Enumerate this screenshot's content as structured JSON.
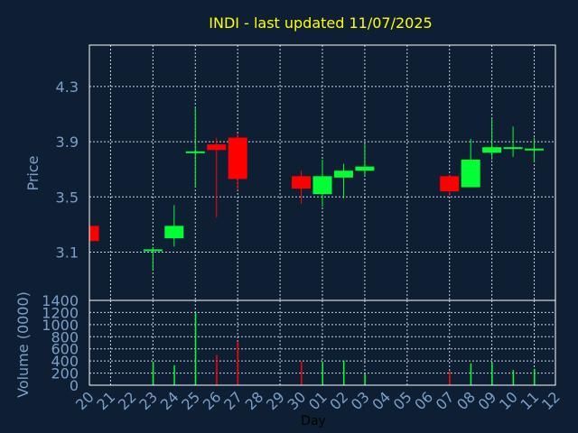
{
  "chart_data": [
    {
      "type": "candlestick",
      "title": "INDI - last updated 11/07/2025",
      "ylabel": "Price",
      "ylim": [
        2.75,
        4.6
      ],
      "yticks": [
        "3.1",
        "3.5",
        "3.9",
        "4.3"
      ],
      "grid": true,
      "x": [
        "20",
        "21",
        "22",
        "23",
        "24",
        "25",
        "26",
        "27",
        "28",
        "29",
        "30",
        "01",
        "02",
        "03",
        "04",
        "05",
        "06",
        "07",
        "08",
        "09",
        "10",
        "11",
        "12"
      ],
      "candles": [
        {
          "day": "20",
          "open": 3.29,
          "high": 3.29,
          "low": 3.18,
          "close": 3.18
        },
        {
          "day": "23",
          "open": 3.11,
          "high": 3.13,
          "low": 2.97,
          "close": 3.12
        },
        {
          "day": "24",
          "open": 3.2,
          "high": 3.44,
          "low": 3.14,
          "close": 3.29
        },
        {
          "day": "25",
          "open": 3.82,
          "high": 4.15,
          "low": 3.57,
          "close": 3.83
        },
        {
          "day": "26",
          "open": 3.88,
          "high": 3.93,
          "low": 3.35,
          "close": 3.84
        },
        {
          "day": "27",
          "open": 3.93,
          "high": 3.96,
          "low": 3.55,
          "close": 3.63
        },
        {
          "day": "30",
          "open": 3.65,
          "high": 3.69,
          "low": 3.45,
          "close": 3.56
        },
        {
          "day": "01",
          "open": 3.52,
          "high": 3.77,
          "low": 3.43,
          "close": 3.65
        },
        {
          "day": "02",
          "open": 3.64,
          "high": 3.74,
          "low": 3.49,
          "close": 3.69
        },
        {
          "day": "03",
          "open": 3.69,
          "high": 3.88,
          "low": 3.65,
          "close": 3.72
        },
        {
          "day": "07",
          "open": 3.65,
          "high": 3.66,
          "low": 3.51,
          "close": 3.54
        },
        {
          "day": "08",
          "open": 3.57,
          "high": 3.92,
          "low": 3.57,
          "close": 3.77
        },
        {
          "day": "09",
          "open": 3.82,
          "high": 4.07,
          "low": 3.77,
          "close": 3.86
        },
        {
          "day": "10",
          "open": 3.85,
          "high": 4.01,
          "low": 3.79,
          "close": 3.86
        },
        {
          "day": "11",
          "open": 3.84,
          "high": 3.93,
          "low": 3.75,
          "close": 3.85
        }
      ],
      "colors": {
        "up": "#00ff33",
        "down": "#ff0000"
      }
    },
    {
      "type": "bar",
      "ylabel": "Volume (0000)",
      "xlabel": "Day",
      "ylim": [
        0,
        1400
      ],
      "yticks": [
        "0",
        "200",
        "400",
        "600",
        "800",
        "1000",
        "1200",
        "1400"
      ],
      "categories": [
        "20",
        "21",
        "22",
        "23",
        "24",
        "25",
        "26",
        "27",
        "28",
        "29",
        "30",
        "01",
        "02",
        "03",
        "04",
        "05",
        "06",
        "07",
        "08",
        "09",
        "10",
        "11",
        "12"
      ],
      "bars": [
        {
          "day": "23",
          "value": 380,
          "dir": "up"
        },
        {
          "day": "24",
          "value": 330,
          "dir": "up"
        },
        {
          "day": "25",
          "value": 1200,
          "dir": "up"
        },
        {
          "day": "26",
          "value": 500,
          "dir": "down"
        },
        {
          "day": "27",
          "value": 720,
          "dir": "down"
        },
        {
          "day": "30",
          "value": 390,
          "dir": "down"
        },
        {
          "day": "01",
          "value": 380,
          "dir": "up"
        },
        {
          "day": "02",
          "value": 410,
          "dir": "up"
        },
        {
          "day": "03",
          "value": 180,
          "dir": "up"
        },
        {
          "day": "07",
          "value": 240,
          "dir": "down"
        },
        {
          "day": "08",
          "value": 360,
          "dir": "up"
        },
        {
          "day": "09",
          "value": 370,
          "dir": "up"
        },
        {
          "day": "10",
          "value": 250,
          "dir": "up"
        },
        {
          "day": "11",
          "value": 270,
          "dir": "up"
        }
      ]
    }
  ],
  "colors": {
    "background": "#0f1f33",
    "frame": "#ffffff",
    "grid": "#c8d0dc",
    "title": "#ffff00",
    "axis_text": "#7b9fc9",
    "day_label": "#000000"
  }
}
